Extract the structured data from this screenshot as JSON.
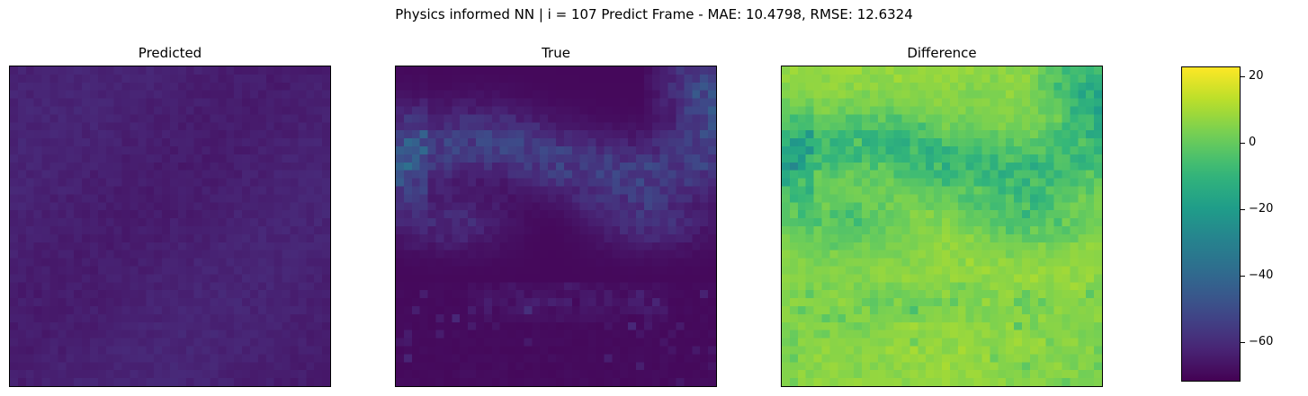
{
  "figure": {
    "suptitle": "Physics informed NN | i = 107 Predict Frame - MAE: 10.4798, RMSE: 12.6324"
  },
  "chart_data": [
    {
      "type": "heatmap",
      "title": "Predicted",
      "grid_size": [
        40,
        40
      ],
      "value_range": [
        -70,
        -55
      ],
      "xlabel": "",
      "ylabel": "",
      "ticks": "none"
    },
    {
      "type": "heatmap",
      "title": "True",
      "grid_size": [
        40,
        40
      ],
      "value_range": [
        -72,
        -15
      ],
      "xlabel": "",
      "ylabel": "",
      "ticks": "none"
    },
    {
      "type": "heatmap",
      "title": "Difference",
      "grid_size": [
        40,
        40
      ],
      "value_range": [
        -70,
        23
      ],
      "xlabel": "",
      "ylabel": "",
      "ticks": "none"
    }
  ],
  "colorbar": {
    "colormap": "viridis",
    "vmin": -72,
    "vmax": 23,
    "ticks": [
      {
        "value": 20,
        "label": "20"
      },
      {
        "value": 0,
        "label": "0"
      },
      {
        "value": -20,
        "label": "−20"
      },
      {
        "value": -40,
        "label": "−40"
      },
      {
        "value": -60,
        "label": "−60"
      }
    ]
  }
}
